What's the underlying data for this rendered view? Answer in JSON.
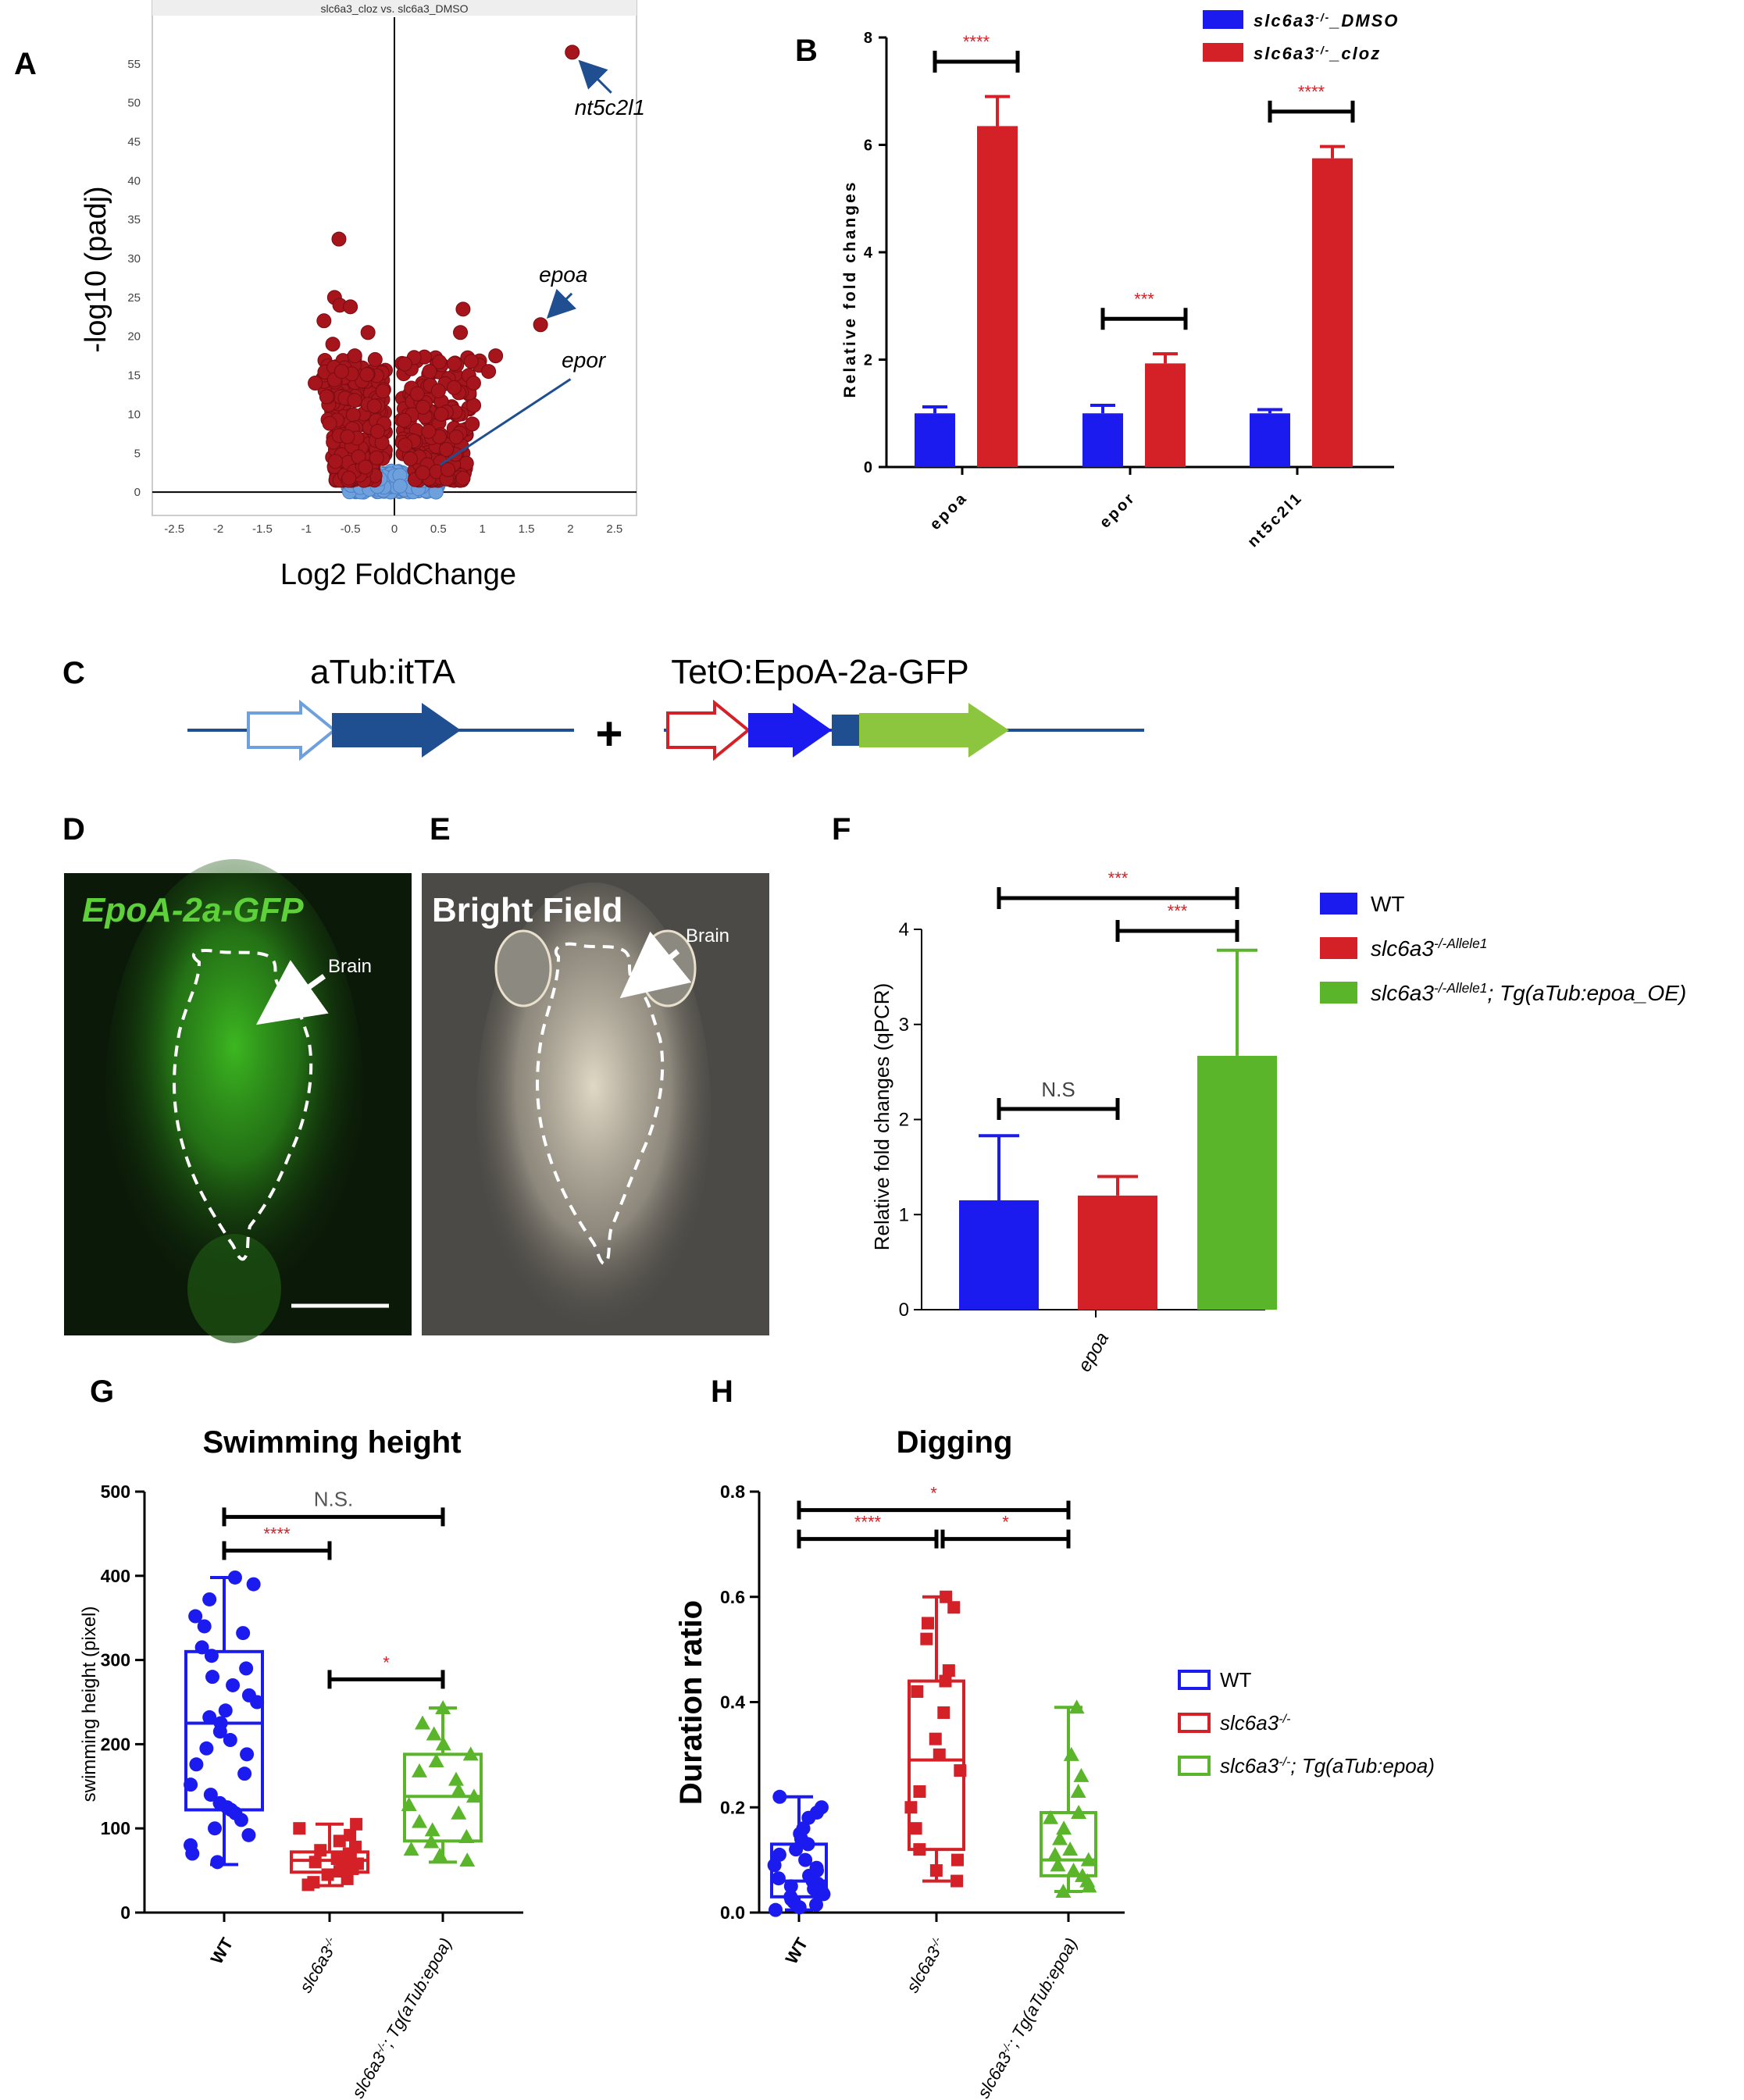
{
  "panel_letters": {
    "A": "A",
    "B": "B",
    "C": "C",
    "D": "D",
    "E": "E",
    "F": "F",
    "G": "G",
    "H": "H"
  },
  "colors": {
    "red": "#d42027",
    "dark_red": "#a6141c",
    "blue": "#1b1bf0",
    "light_blue": "#6fa0de",
    "green": "#5ab52a",
    "navy": "#1f4e91",
    "sig_red": "#d42027",
    "micro_bg": "#0b1a08",
    "bf_bg": "#4c4a46"
  },
  "chart_data": [
    {
      "panel": "A",
      "type": "scatter",
      "title": "slc6a3_cloz vs. slc6a3_DMSO",
      "xlabel": "Log2 FoldChange",
      "ylabel": "-log10 (padj)",
      "xlim": [
        -2.75,
        2.75
      ],
      "ylim": [
        -3,
        61
      ],
      "x_ticks": [
        "-2.5",
        "-2",
        "-1.5",
        "-1",
        "-0.5",
        "0",
        "0.5",
        "1",
        "1.5",
        "2",
        "2.5"
      ],
      "y_ticks": [
        "0",
        "5",
        "10",
        "15",
        "20",
        "25",
        "30",
        "35",
        "40",
        "45",
        "50",
        "55"
      ],
      "annotations": [
        {
          "text": "nt5c2l1",
          "x": 2.02,
          "y": 56.5
        },
        {
          "text": "epoa",
          "x": 1.66,
          "y": 21.5
        },
        {
          "text": "epor",
          "x": 0.52,
          "y": 3.5
        }
      ],
      "series": [
        {
          "color": "#a6141c",
          "points": [
            [
              2.02,
              56.5
            ],
            [
              1.66,
              21.5
            ],
            [
              0.78,
              23.5
            ],
            [
              0.75,
              20.5
            ],
            [
              1.15,
              17.5
            ],
            [
              1.07,
              15.5
            ],
            [
              -0.63,
              32.5
            ],
            [
              -0.68,
              25.0
            ],
            [
              -0.62,
              24.0
            ],
            [
              -0.5,
              23.8
            ],
            [
              -0.3,
              20.5
            ],
            [
              -0.8,
              22.0
            ],
            [
              -0.7,
              19.0
            ],
            [
              -0.45,
              17.5
            ],
            [
              0.68,
              16.5
            ],
            [
              0.4,
              15.5
            ],
            [
              0.9,
              14.0
            ],
            [
              -0.9,
              14.0
            ],
            [
              -0.6,
              15.5
            ],
            [
              0.5,
              13.0
            ]
          ]
        },
        {
          "color": "#6fa0de",
          "points": []
        }
      ]
    },
    {
      "panel": "B",
      "type": "bar",
      "categories": [
        "epoa",
        "epor",
        "nt5c2l1"
      ],
      "ylabel": "Relative fold changes",
      "ylim": [
        0,
        8
      ],
      "y_ticks": [
        "0",
        "2",
        "4",
        "6",
        "8"
      ],
      "series": [
        {
          "name": "slc6a3-/-_DMSO",
          "values": [
            1.0,
            1.0,
            1.0
          ],
          "errors": [
            0.12,
            0.15,
            0.07
          ],
          "color": "#1b1bf0"
        },
        {
          "name": "slc6a3-/-_cloz",
          "values": [
            6.35,
            1.93,
            5.75
          ],
          "errors": [
            0.55,
            0.18,
            0.22
          ],
          "color": "#d42027"
        }
      ],
      "significance": [
        "****",
        "***",
        "****"
      ],
      "legend": {
        "items": [
          {
            "pre": "slc6a3",
            "sup": "-/-",
            "post": "_DMSO",
            "color": "#1b1bf0"
          },
          {
            "pre": "slc6a3",
            "sup": "-/-",
            "post": "_cloz",
            "color": "#d42027"
          }
        ]
      }
    },
    {
      "panel": "F",
      "type": "bar",
      "categories": [
        "epoa"
      ],
      "ylabel": "Relative fold changes (qPCR)",
      "ylim": [
        0,
        4
      ],
      "y_ticks": [
        "0",
        "1",
        "2",
        "3",
        "4"
      ],
      "series": [
        {
          "name": "WT",
          "values": [
            1.15
          ],
          "errors": [
            0.68
          ],
          "color": "#1b1bf0"
        },
        {
          "name": "slc6a3-/-Allele1",
          "values": [
            1.2
          ],
          "errors": [
            0.2
          ],
          "color": "#d42027"
        },
        {
          "name": "slc6a3-/-Allele1; Tg(aTub:epoa_OE)",
          "values": [
            2.67
          ],
          "errors": [
            1.11
          ],
          "color": "#5ab52a"
        }
      ],
      "significance": [
        {
          "text": "***",
          "from": 0,
          "to": 2
        },
        {
          "text": "***",
          "from": 1,
          "to": 2
        },
        {
          "text": "N.S",
          "from": 0,
          "to": 1
        }
      ],
      "legend": {
        "items": [
          {
            "pre": "WT",
            "sup": "",
            "post": "",
            "color": "#1b1bf0"
          },
          {
            "pre": "slc6a3",
            "sup": "-/-Allele1",
            "post": "",
            "color": "#d42027"
          },
          {
            "pre": "slc6a3",
            "sup": "-/-Allele1",
            "post": "; Tg(aTub:epoa_OE)",
            "color": "#5ab52a"
          }
        ]
      }
    },
    {
      "panel": "G",
      "type": "box",
      "title": "Swimming height",
      "ylabel": "swimming height (pixel)",
      "ylim": [
        0,
        500
      ],
      "y_ticks": [
        "0",
        "100",
        "200",
        "300",
        "400",
        "500"
      ],
      "groups": [
        {
          "label": "WT",
          "min": 57,
          "q1": 122,
          "median": 225,
          "q3": 310,
          "max": 398,
          "color": "#1b1bf0",
          "marker": "circle",
          "points": [
            398,
            390,
            372,
            352,
            340,
            332,
            315,
            305,
            290,
            280,
            270,
            258,
            250,
            240,
            232,
            225,
            215,
            205,
            195,
            188,
            176,
            165,
            152,
            140,
            130,
            125,
            122,
            118,
            110,
            100,
            92,
            80,
            70,
            60
          ]
        },
        {
          "label": "slc6a3-/-",
          "min": 32,
          "q1": 48,
          "median": 62,
          "q3": 72,
          "max": 105,
          "color": "#d42027",
          "marker": "square",
          "points": [
            105,
            100,
            92,
            85,
            78,
            74,
            70,
            67,
            64,
            62,
            60,
            58,
            55,
            52,
            49,
            45,
            40,
            36,
            33
          ]
        },
        {
          "label": "slc6a3-/-; Tg(aTub:epoa)",
          "min": 60,
          "q1": 85,
          "median": 138,
          "q3": 188,
          "max": 243,
          "color": "#5ab52a",
          "marker": "triangle",
          "points": [
            243,
            225,
            212,
            200,
            188,
            180,
            168,
            158,
            145,
            138,
            128,
            118,
            108,
            98,
            90,
            84,
            75,
            68,
            62
          ]
        }
      ],
      "significance": [
        {
          "text": "N.S.",
          "from": 0,
          "to": 2,
          "y": 470
        },
        {
          "text": "****",
          "from": 0,
          "to": 1,
          "y": 430
        },
        {
          "text": "*",
          "from": 1,
          "to": 2,
          "y": 277
        }
      ]
    },
    {
      "panel": "H",
      "type": "box",
      "title": "Digging",
      "ylabel": "Duration ratio",
      "ylim": [
        0,
        0.8
      ],
      "y_ticks": [
        "0.0",
        "0.2",
        "0.4",
        "0.6",
        "0.8"
      ],
      "groups": [
        {
          "label": "WT",
          "min": 0.005,
          "q1": 0.03,
          "median": 0.06,
          "q3": 0.13,
          "max": 0.22,
          "color": "#1b1bf0",
          "marker": "circle",
          "points": [
            0.22,
            0.2,
            0.19,
            0.18,
            0.16,
            0.15,
            0.14,
            0.13,
            0.12,
            0.11,
            0.1,
            0.09,
            0.085,
            0.08,
            0.07,
            0.065,
            0.06,
            0.055,
            0.05,
            0.045,
            0.04,
            0.035,
            0.03,
            0.025,
            0.02,
            0.015,
            0.01,
            0.005
          ]
        },
        {
          "label": "slc6a3-/-",
          "min": 0.06,
          "q1": 0.12,
          "median": 0.29,
          "q3": 0.44,
          "max": 0.6,
          "color": "#d42027",
          "marker": "square",
          "points": [
            0.6,
            0.58,
            0.55,
            0.52,
            0.46,
            0.44,
            0.42,
            0.38,
            0.33,
            0.3,
            0.27,
            0.23,
            0.2,
            0.16,
            0.12,
            0.1,
            0.08,
            0.06
          ]
        },
        {
          "label": "slc6a3-/-; Tg(aTub:epoa)",
          "min": 0.04,
          "q1": 0.07,
          "median": 0.1,
          "q3": 0.19,
          "max": 0.39,
          "color": "#5ab52a",
          "marker": "triangle",
          "points": [
            0.39,
            0.3,
            0.26,
            0.23,
            0.19,
            0.18,
            0.16,
            0.14,
            0.12,
            0.11,
            0.1,
            0.09,
            0.08,
            0.07,
            0.06,
            0.05,
            0.04
          ]
        }
      ],
      "significance": [
        {
          "text": "*",
          "from": 0,
          "to": 2,
          "y": 0.765
        },
        {
          "text": "****",
          "from": 0,
          "to": 1,
          "y": 0.71
        },
        {
          "text": "*",
          "from": 1,
          "to": 2,
          "y": 0.71
        }
      ],
      "legend": {
        "items": [
          {
            "pre": "WT",
            "sup": "",
            "post": "",
            "color": "#1b1bf0"
          },
          {
            "pre": "slc6a3",
            "sup": "-/-",
            "post": "",
            "color": "#d42027"
          },
          {
            "pre": "slc6a3",
            "sup": "-/-",
            "post": "; Tg(aTub:epoa)",
            "color": "#5ab52a"
          }
        ]
      }
    }
  ],
  "panel_C": {
    "label_left": "aTub:itTA",
    "label_right": "TetO:EpoA-2a-GFP",
    "plus": "+"
  },
  "panel_D": {
    "label": "EpoA-2a-GFP",
    "brain": "Brain"
  },
  "panel_E": {
    "label": "Bright Field",
    "brain": "Brain"
  },
  "group_labels": {
    "wt": "WT",
    "ko_base": "slc6a3",
    "ko_sup": "-/-",
    "tg_post": "; Tg(aTub:epoa)"
  }
}
